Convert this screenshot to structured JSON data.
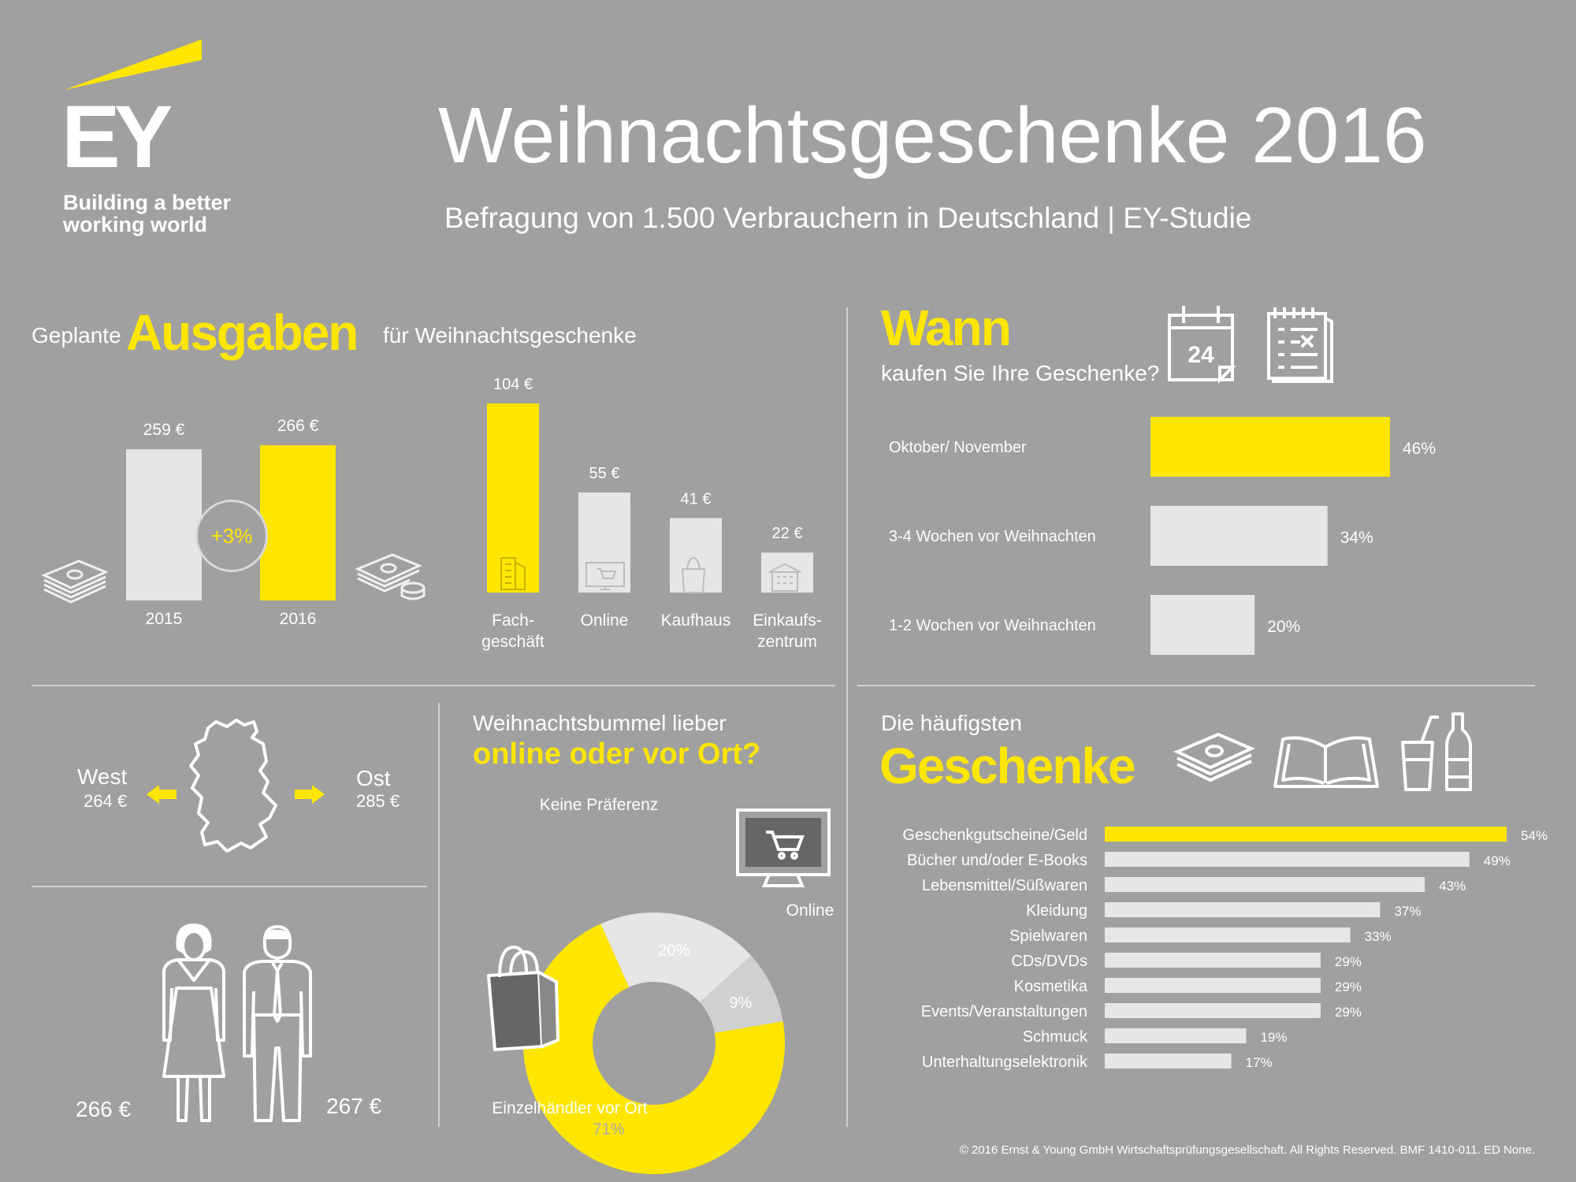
{
  "brand": {
    "logo_text": "EY",
    "tagline_1": "Building a better",
    "tagline_2": "working world"
  },
  "header": {
    "title": "Weihnachtsgeschenke 2016",
    "subtitle": "Befragung von 1.500 Verbrauchern in Deutschland | EY-Studie"
  },
  "colors": {
    "accent": "#ffe600",
    "background": "#a0a0a0",
    "bar_light": "#e6e6e6",
    "dark": "#666666"
  },
  "spending": {
    "title_pre": "Geplante",
    "title_main": "Ausgaben",
    "title_post": "für Weihnachtsgeschenke",
    "growth_badge": "+3%",
    "icons": [
      "money-stack-icon",
      "money-coins-icon",
      "building-icon",
      "monitor-cart-icon",
      "shopping-bag-icon",
      "mall-icon"
    ]
  },
  "timing": {
    "title": "Wann",
    "subtitle": "kaufen Sie Ihre Geschenke?",
    "calendar_label": "24",
    "icons": [
      "calendar-icon",
      "checklist-icon"
    ]
  },
  "region": {
    "west_label": "West",
    "west_value": "264 €",
    "east_label": "Ost",
    "east_value": "285 €",
    "icons": [
      "germany-map-icon",
      "arrow-left-icon",
      "arrow-right-icon"
    ]
  },
  "gender": {
    "female_value": "266 €",
    "male_value": "267 €",
    "icons": [
      "woman-icon",
      "man-icon"
    ]
  },
  "shopping": {
    "title_line1": "Weihnachtsbummel lieber",
    "title_line2": "online oder vor Ort?",
    "icons": [
      "monitor-cart-icon",
      "shopping-bag-icon"
    ]
  },
  "gifts": {
    "title_pre": "Die häufigsten",
    "title_main": "Geschenke",
    "icons": [
      "money-stack-icon",
      "book-icon",
      "drink-icon"
    ]
  },
  "footer": {
    "copyright": "© 2016 Ernst & Young GmbH Wirtschaftsprüfungsgesellschaft. All Rights Reserved. BMF 1410-011. ED None."
  },
  "chart_data": [
    {
      "type": "bar",
      "categories": [
        "2015",
        "2016"
      ],
      "values": [
        259,
        266
      ],
      "value_labels": [
        "259 €",
        "266 €"
      ],
      "colors": [
        "#e6e6e6",
        "#ffe600"
      ]
    },
    {
      "type": "bar",
      "categories": [
        "Fach-\ngeschäft",
        "Online",
        "Kaufhaus",
        "Einkaufs-\nzentrum"
      ],
      "values": [
        104,
        55,
        41,
        22
      ],
      "value_labels": [
        "104 €",
        "55 €",
        "41 €",
        "22 €"
      ],
      "colors": [
        "#ffe600",
        "#e6e6e6",
        "#e6e6e6",
        "#e6e6e6"
      ]
    },
    {
      "type": "bar",
      "orientation": "horizontal",
      "categories": [
        "Oktober/ November",
        "3-4 Wochen vor Weihnachten",
        "1-2 Wochen vor Weihnachten"
      ],
      "values": [
        46,
        34,
        20
      ],
      "value_labels": [
        "46%",
        "34%",
        "20%"
      ],
      "colors": [
        "#ffe600",
        "#e6e6e6",
        "#e6e6e6"
      ]
    },
    {
      "type": "pie",
      "categories": [
        "Einzelhändler vor Ort",
        "Keine Präferenz",
        "Online"
      ],
      "values": [
        71,
        20,
        9
      ],
      "value_labels": [
        "71%",
        "20%",
        "9%"
      ],
      "colors": [
        "#ffe600",
        "#e6e6e6",
        "#d0d0d0"
      ]
    },
    {
      "type": "bar",
      "orientation": "horizontal",
      "categories": [
        "Geschenkgutscheine/Geld",
        "Bücher und/oder E-Books",
        "Lebensmittel/Süßwaren",
        "Kleidung",
        "Spielwaren",
        "CDs/DVDs",
        "Kosmetika",
        "Events/Veranstaltungen",
        "Schmuck",
        "Unterhaltungselektronik"
      ],
      "values": [
        54,
        49,
        43,
        37,
        33,
        29,
        29,
        29,
        19,
        17
      ],
      "value_labels": [
        "54%",
        "49%",
        "43%",
        "37%",
        "33%",
        "29%",
        "29%",
        "29%",
        "19%",
        "17%"
      ],
      "colors": [
        "#ffe600",
        "#e6e6e6",
        "#e6e6e6",
        "#e6e6e6",
        "#e6e6e6",
        "#e6e6e6",
        "#e6e6e6",
        "#e6e6e6",
        "#e6e6e6",
        "#e6e6e6"
      ]
    }
  ]
}
